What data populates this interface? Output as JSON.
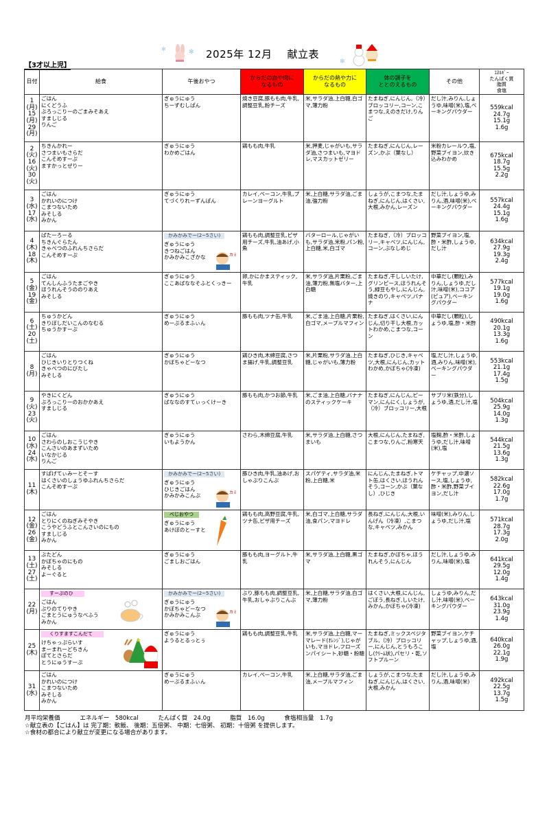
{
  "header": {
    "year_month": "2025年 12月",
    "title": "献立表",
    "age_group": "【3才以上児】"
  },
  "columns": {
    "date": "日付",
    "lunch": "給食",
    "snack": "午後おやつ",
    "red": "からだの血や肉に\nなるもの",
    "yellow": "からだの熱や力に\nなるもの",
    "green": "体の調子を\nととのえるもの",
    "other": "その他",
    "nutrition": "ｴﾈﾙｷﾞｰ\nたんぱく質\n脂質\n食塩"
  },
  "colors": {
    "red": "#ff0000",
    "yellow": "#ffff00",
    "green": "#00b050"
  },
  "rows": [
    {
      "dates": [
        "1",
        "(月)",
        "15",
        "(月)",
        "29",
        "(月)"
      ],
      "lunch": [
        "ごはん",
        "にくどうふ",
        "ぶろっこりーのごまみそあえ",
        "すましじる",
        "りんご"
      ],
      "snack": [
        "ぎゅうにゅう",
        "ちーずむしぱん"
      ],
      "red": "焼き豆腐,豚もも肉,牛乳,調整豆乳,粉チーズ",
      "yellow": "米,サラダ油,上白糖,白ゴマ,薄力粉",
      "green": "たまねぎ,にんじん,（冷）ブロッコリー,コーン,こまつな,えのきだけ,りんご",
      "other": "だし汁,みりん,しょうゆ,味噌(米),塩,ベーキングパウダー",
      "nutrition": [
        "559kcal",
        "24.7g",
        "15.1g",
        "1.6g"
      ]
    },
    {
      "dates": [
        "2",
        "(火)",
        "16",
        "(火)",
        "30",
        "(火)"
      ],
      "lunch": [
        "ちきんかれー",
        "さつまいもさらだ",
        "こんそめすーぷ",
        "ますかっとぜりー"
      ],
      "snack": [
        "ぎゅうにゅう",
        "わかめごはん"
      ],
      "red": "鶏もも肉,牛乳",
      "yellow": "米,押麦,じゃがいも,サラダ油,さつまいも,マヨドレ,マスカットゼリー",
      "green": "たまねぎ,にんじん,レーズン,かぶ（葉なし）",
      "other": "米粉カレールウ,塩,野菜ブイヨン,炊き込みわかめ",
      "nutrition": [
        "675kcal",
        "18.7g",
        "15.5g",
        "2.2g"
      ]
    },
    {
      "dates": [
        "3",
        "(水)",
        "17",
        "(水)"
      ],
      "lunch": [
        "ごはん",
        "かれいのにつけ",
        "こまつないため",
        "みそしる",
        "みかん"
      ],
      "snack": [
        "ぎゅうにゅう",
        "てづくりれーずんぱん"
      ],
      "red": "カレイ,ベーコン,牛乳,プレーンヨーグルト",
      "yellow": "米,上白糖,サラダ油,ごま油,強力粉",
      "green": "しょうが,こまつな,たまねぎ,にんじん,はくさい,大根,みかん,レーズン",
      "other": "だし汁,しょうゆ,みりん,酒,味噌(米),ベーキングパウダー",
      "nutrition": [
        "557kcal",
        "24.4g",
        "15.1g",
        "1.6g"
      ]
    },
    {
      "dates": [
        "4",
        "(木)",
        "18",
        "(木)"
      ],
      "lunch": [
        "ばたーろーる",
        "ちきんぐらたん",
        "きゃべつのふれんちさらだ",
        "こんそめすーぷ"
      ],
      "snack_badge": "かみかみでー(2~5さい)",
      "snack": [
        "ぎゅうにゅう",
        "きつねごはん",
        "かみかみこざかな"
      ],
      "red": "鶏もも肉,調整豆乳,ピザ用チーズ,牛乳,油あげ,小魚",
      "yellow": "バターロール,じゃがいも,サラダ油,米粉,パン粉,上白糖,米,白ゴマ",
      "green": "たまねぎ,（冷）ブロッコリー,キャベツ,にんじん,コーン,ぶなしめじ",
      "other": "野菜ブイヨン,塩,酢・米酢,しょうゆ,だし汁",
      "nutrition": [
        "634kcal",
        "27.9g",
        "19.3g",
        "2.4g"
      ]
    },
    {
      "dates": [
        "5",
        "(金)",
        "19",
        "(金)"
      ],
      "lunch": [
        "ごはん",
        "てんしんふうたまごやき",
        "ほうれんそうののりあえ",
        "みそしる"
      ],
      "snack": [
        "ぎゅうにゅう",
        "ここあばななそふとくっきー"
      ],
      "red": "卵,かにかまスティック,牛乳",
      "yellow": "米,サラダ油,片栗粉,ごま油,薄力粉,無塩バター,上白糖",
      "green": "たまねぎ,干ししいたけ,グリンピース,ほうれんそう,緑豆もやし,にんじん,焼きのり,キャベツ,バナナ",
      "other": "中華だし(顆粒),みりん,しょうゆ,だし汁,味噌(米),ココア(ピュア),ベーキングパウダー",
      "nutrition": [
        "577kcal",
        "19.1g",
        "19.0g",
        "1.6g"
      ]
    },
    {
      "dates": [
        "6",
        "(土)",
        "20",
        "(土)"
      ],
      "lunch": [
        "ちゅうかどん",
        "きりぼしだいこんのなむる",
        "ちゅうかすーぷ"
      ],
      "snack": [
        "ぎゅうにゅう",
        "めーぷるまふぃん"
      ],
      "red": "豚もも肉,ツナ缶,牛乳",
      "yellow": "米,ごま油,上白糖,片栗粉,白ゴマ,メープルマフィン",
      "green": "たまねぎ,はくさい,にんじん,切り干し大根,カットわかめ,こまつな,コーン",
      "other": "中華だし(顆粒),しょうゆ,塩,酢・米酢",
      "nutrition": [
        "490kcal",
        "20.1g",
        "13.3g",
        "1.6g"
      ]
    },
    {
      "dates": [
        "8",
        "(月)"
      ],
      "lunch": [
        "ごはん",
        "ひじきいりとりつくね",
        "きゃべつのにびたし",
        "みそしる"
      ],
      "snack": [
        "ぎゅうにゅう",
        "かぼちゃどーなつ"
      ],
      "red": "鶏ひき肉,木綿豆腐,さつま揚げ,牛乳,調整豆乳",
      "yellow": "米,片栗粉,サラダ油,上白糖,じゃがいも,薄力粉",
      "green": "たまねぎ,ひじき,キャベツ,大根,にんじん,カットわかめ,かぼちゃ(冷凍)",
      "other": "塩,だし汁,しょうゆ,酒,みりん,味噌(米),ベーキングパウダー",
      "nutrition": [
        "553kcal",
        "21.1g",
        "17.4g",
        "1.5g"
      ]
    },
    {
      "dates": [
        "9",
        "(火)",
        "23",
        "(火)"
      ],
      "lunch": [
        "やきにくどん",
        "ぶろっこりーのおかかあえ",
        "すましじる"
      ],
      "snack": [
        "ぎゅうにゅう",
        "ばななのすてぃっくけーき"
      ],
      "red": "豚もも肉,かつお節,牛乳",
      "yellow": "米,ごま油,上白糖,バナナのスティックケーキ",
      "green": "たまねぎ,にんじん,ピーマン,にんにく,しょうが,（冷）ブロッコリー,大根",
      "other": "サプリ米(鉄分),しょうゆ,酒,だし汁,塩",
      "nutrition": [
        "504kcal",
        "25.9g",
        "14.0g",
        "1.3g"
      ]
    },
    {
      "dates": [
        "10",
        "(水)",
        "24",
        "(水)"
      ],
      "lunch": [
        "ごはん",
        "さわらのしおこうじやき",
        "こんさいのあまずいため",
        "いなかじる",
        "りんご"
      ],
      "snack": [
        "ぎゅうにゅう",
        "いもようかん"
      ],
      "red": "さわら,木綿豆腐,牛乳",
      "yellow": "米,サラダ油,上白糖,さつまいも",
      "green": "大根,にんじん,たまねぎ,こまつな,りんご,粉寒天",
      "other": "塩麹,酢・米酢,しょうゆ,だし汁,味噌(米),塩",
      "nutrition": [
        "544kcal",
        "21.5g",
        "13.6g",
        "1.3g"
      ]
    },
    {
      "dates": [
        "11",
        "(木)"
      ],
      "lunch": [
        "すぱげてぃみーとそーす",
        "はくさいのしょうゆふれんちさらだ",
        "こんそめすーぷ"
      ],
      "snack_badge": "かみかみでー(2~5さい)",
      "snack": [
        "ぎゅうにゅう",
        "ひじきごはん",
        "かみかみこんぶ"
      ],
      "red": "豚ひき肉,牛乳,油あげ,おしゃぶりこんぶ",
      "yellow": "スパゲティ,サラダ油,米粉,上白糖,米",
      "green": "にんじん,たまねぎ,トマト缶,はくさい,ほうれんそう,コーン,かぶ（葉なし）,ひじき",
      "other": "ケチャップ,中濃ソース,塩,しょうゆ,酢・米酢,野菜ブイヨン,だし汁",
      "nutrition": [
        "582kcal",
        "22.6g",
        "17.0g",
        "1.7g"
      ]
    },
    {
      "dates": [
        "12",
        "(金)",
        "26",
        "(金)"
      ],
      "lunch": [
        "ごはん",
        "とりにくのねぎみそやき",
        "こうやどうふとこんさいのにもの",
        "すましじる",
        "みかん"
      ],
      "snack_badge": "べじおやつ",
      "snack": [
        "ぎゅうにゅう",
        "あけぼのとーすと"
      ],
      "red": "鶏もも肉,高野豆腐,牛乳,ツナ缶,ピザ用チーズ",
      "yellow": "米,白ゴマ,上白糖,サラダ油,食パン,マヨドレ",
      "green": "長ねぎ,にんじん,大根,いんげん（冷凍）,こまつな,キャベツ,みかん",
      "other": "味噌(米),みりん,しょうゆ,だし汁,塩",
      "nutrition": [
        "571kcal",
        "28.7g",
        "17.3g",
        "2.0g"
      ]
    },
    {
      "dates": [
        "13",
        "(土)",
        "27",
        "(土)"
      ],
      "lunch": [
        "ぶたどん",
        "かぼちゃのにもの",
        "みそしる",
        "よーぐると"
      ],
      "snack": [
        "ぎゅうにゅう",
        "ごましおごはん"
      ],
      "red": "豚もも肉,ヨーグルト,牛乳",
      "yellow": "米,サラダ油,上白糖,黒ゴマ",
      "green": "たまねぎ,かぼちゃ,ほうれんそう,にんじん",
      "other": "だし汁,しょうゆ,みりん,味噌(米),塩",
      "nutrition": [
        "641kcal",
        "29.5g",
        "12.0g",
        "1.4g"
      ]
    },
    {
      "dates": [
        "22",
        "(月)"
      ],
      "lunch_badge": "すーぷのひ",
      "lunch": [
        "ごはん",
        "ぶりのてりやき",
        "ごまとうにゅうなべふう",
        "みかん"
      ],
      "snack_badge": "かみかみでー(2~5さい)",
      "snack": [
        "ぎゅうにゅう",
        "かぼちゃどーなつ",
        "かみかみこんぶ"
      ],
      "red": "ぶり,豚もも肉,調整豆乳,牛乳,おしゃぶりこんぶ",
      "yellow": "米,上白糖,サラダ油,白ゴマ,薄力粉",
      "green": "はくさい,大根,にんじん,ごぼう,長ねぎ,しいたけ,みかん,かぼちゃ(冷凍)",
      "other": "しょうゆ,みりん,だし汁,味噌(米),ベーキングパウダー",
      "nutrition": [
        "643kcal",
        "31.0g",
        "23.9g",
        "1.4g"
      ]
    },
    {
      "dates": [
        "25",
        "(木)"
      ],
      "lunch_badge": "くりすますこんだて",
      "lunch": [
        "けちゃっぷらいす",
        "まーまれーどちきん",
        "ぽてとさらだ",
        "とうにゅうすーぷ"
      ],
      "snack": [
        "ぎゅうにゅう",
        "ようるとるっとぅ"
      ],
      "red": "鶏もも肉,調整豆乳,牛乳",
      "yellow": "米,サラダ油,上白糖,マーマレード(ｵﾚﾝｼﾞ),じゃがいも,マヨドレ,フローズンパイシート,砂糖・粉糖",
      "green": "たまねぎ,ミックスベジタブル,（冷）ブロッコリー,にんじん,とうもろこし(ｸﾘｰﾑ状),パセリ・乾,ソフトプルーン",
      "other": "野菜ブイヨン,ケチャップ,しょうゆ,酒,塩",
      "nutrition": [
        "640kcal",
        "26.0g",
        "22.1g",
        "1.9g"
      ]
    },
    {
      "dates": [
        "31",
        "(水)"
      ],
      "lunch": [
        "ごはん",
        "かれいのにつけ",
        "こまつないため",
        "みそしる",
        "みかん"
      ],
      "snack": [
        "ぎゅうにゅう",
        "めーぷるまふぃん"
      ],
      "red": "カレイ,ベーコン,牛乳",
      "yellow": "米,上白糖,サラダ油,ごま油,メープルマフィン",
      "green": "しょうが,こまつな,たまねぎ,にんじん,はくさい,大根,みかん",
      "other": "だし汁,しょうゆ,みりん,酒,味噌(米)",
      "nutrition": [
        "492kcal",
        "22.5g",
        "13.7g",
        "1.5g"
      ]
    }
  ],
  "footer": {
    "monthly_label": "月平均栄養価",
    "energy": "エネルギー　580kcal",
    "protein": "たんぱく質　24.0g",
    "fat": "脂質　16.0g",
    "salt": "食塩相当量　1.7g",
    "note1": "☆献立表の【ごはん】は 完了期：軟飯、 後期：五倍粥、 中期：七倍粥、 初期：十倍粥 を提供します。",
    "note2": "☆食材の都合により献立が変更になる場合があります。"
  }
}
